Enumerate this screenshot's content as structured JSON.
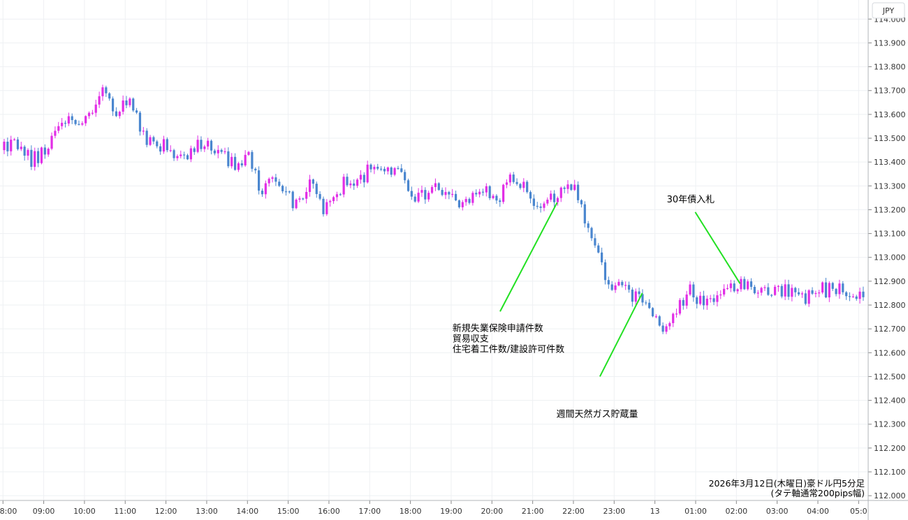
{
  "chart_data": {
    "type": "candlestick",
    "currency_label": "JPY",
    "y_ticks": [
      "114.000",
      "113.900",
      "113.800",
      "113.700",
      "113.600",
      "113.500",
      "113.400",
      "113.300",
      "113.200",
      "113.100",
      "113.000",
      "112.900",
      "112.800",
      "112.700",
      "112.600",
      "112.500",
      "112.400",
      "112.300",
      "112.200",
      "112.100",
      "112.000"
    ],
    "ylim": [
      111.98,
      114.08
    ],
    "x_ticks": [
      {
        "label": "8:00",
        "t": -0.03
      },
      {
        "label": "09:00",
        "t": 0.97
      },
      {
        "label": "10:00",
        "t": 1.97
      },
      {
        "label": "11:00",
        "t": 2.97
      },
      {
        "label": "12:00",
        "t": 3.97
      },
      {
        "label": "13:00",
        "t": 4.97
      },
      {
        "label": "14:00",
        "t": 5.97
      },
      {
        "label": "15:00",
        "t": 6.97
      },
      {
        "label": "16:00",
        "t": 7.97
      },
      {
        "label": "17:00",
        "t": 8.97
      },
      {
        "label": "18:00",
        "t": 9.97
      },
      {
        "label": "19:00",
        "t": 10.97
      },
      {
        "label": "20:00",
        "t": 11.97
      },
      {
        "label": "21:00",
        "t": 12.97
      },
      {
        "label": "22:00",
        "t": 13.97
      },
      {
        "label": "23:00",
        "t": 14.97
      },
      {
        "label": "13",
        "t": 15.97
      },
      {
        "label": "01:00",
        "t": 16.97
      },
      {
        "label": "02:00",
        "t": 17.97
      },
      {
        "label": "03:00",
        "t": 18.97
      },
      {
        "label": "04:00",
        "t": 19.97
      },
      {
        "label": "05:0",
        "t": 20.97
      }
    ],
    "x_range": [
      0,
      21.17
    ],
    "interval": "5分",
    "up_color": "#e22ee6",
    "down_color": "#4a86cf",
    "anchors": [
      [
        0.0,
        113.45
      ],
      [
        0.4,
        113.47
      ],
      [
        0.8,
        113.4
      ],
      [
        1.1,
        113.45
      ],
      [
        1.5,
        113.58
      ],
      [
        1.9,
        113.56
      ],
      [
        2.3,
        113.63
      ],
      [
        2.55,
        113.72
      ],
      [
        2.85,
        113.58
      ],
      [
        3.15,
        113.68
      ],
      [
        3.55,
        113.47
      ],
      [
        4.05,
        113.46
      ],
      [
        4.35,
        113.42
      ],
      [
        4.7,
        113.45
      ],
      [
        5.0,
        113.48
      ],
      [
        5.4,
        113.44
      ],
      [
        5.75,
        113.38
      ],
      [
        6.1,
        113.42
      ],
      [
        6.35,
        113.27
      ],
      [
        6.7,
        113.34
      ],
      [
        7.2,
        113.22
      ],
      [
        7.55,
        113.31
      ],
      [
        8.0,
        113.2
      ],
      [
        8.4,
        113.3
      ],
      [
        8.85,
        113.35
      ],
      [
        9.2,
        113.36
      ],
      [
        9.7,
        113.38
      ],
      [
        10.2,
        113.24
      ],
      [
        10.7,
        113.29
      ],
      [
        11.2,
        113.23
      ],
      [
        11.7,
        113.27
      ],
      [
        12.2,
        113.24
      ],
      [
        12.6,
        113.34
      ],
      [
        12.85,
        113.3
      ],
      [
        13.25,
        113.22
      ],
      [
        13.7,
        113.27
      ],
      [
        14.05,
        113.3
      ],
      [
        14.35,
        113.17
      ],
      [
        14.75,
        112.95
      ],
      [
        15.0,
        112.87
      ],
      [
        15.35,
        112.88
      ],
      [
        15.7,
        112.81
      ],
      [
        16.0,
        112.78
      ],
      [
        16.3,
        112.67
      ],
      [
        16.6,
        112.78
      ],
      [
        16.9,
        112.86
      ],
      [
        17.3,
        112.78
      ],
      [
        17.6,
        112.87
      ],
      [
        17.9,
        112.88
      ],
      [
        18.3,
        112.88
      ],
      [
        18.8,
        112.86
      ],
      [
        19.3,
        112.86
      ],
      [
        19.75,
        112.83
      ],
      [
        20.3,
        112.87
      ],
      [
        20.7,
        112.86
      ],
      [
        20.98,
        112.8
      ],
      [
        21.13,
        112.84
      ]
    ],
    "annotations": [
      {
        "lines": [
          "新規失業保険申請件数",
          "貿易収支",
          "住宅着工件数/建設許可件数"
        ],
        "text_t": 11.0,
        "text_price": 112.69,
        "line_from": [
          12.17,
          112.773
        ],
        "line_to": [
          13.57,
          113.23
        ]
      },
      {
        "lines": [
          "週間天然ガス貯蔵量"
        ],
        "text_t": 13.55,
        "text_price": 112.33,
        "line_from": [
          14.62,
          112.5
        ],
        "line_to": [
          15.66,
          112.85
        ]
      },
      {
        "lines": [
          "30年債入札"
        ],
        "text_t": 16.26,
        "text_price": 113.23,
        "line_from": [
          16.96,
          113.19
        ],
        "line_to": [
          18.06,
          112.89
        ]
      }
    ],
    "footnote": [
      "2026年3月12日(木曜日)豪ドル円5分足",
      "(タテ軸通常200pips幅)"
    ]
  }
}
